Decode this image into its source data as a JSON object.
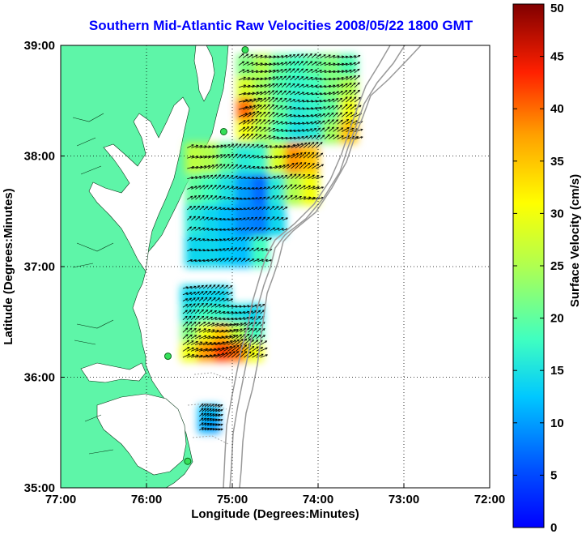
{
  "title": "Southern Mid-Atlantic Raw Velocities 2008/05/22 1800 GMT",
  "map": {
    "xlabel": "Longitude (Degrees:Minutes)",
    "ylabel": "Latitude (Degrees:Minutes)",
    "lon_range": [
      -77,
      -72
    ],
    "lat_range": [
      35,
      39
    ],
    "x_ticks": [
      {
        "value": -77,
        "label": "77:00"
      },
      {
        "value": -76,
        "label": "76:00"
      },
      {
        "value": -75,
        "label": "75:00"
      },
      {
        "value": -74,
        "label": "74:00"
      },
      {
        "value": -73,
        "label": "73:00"
      },
      {
        "value": -72,
        "label": "72:00"
      }
    ],
    "y_ticks": [
      {
        "value": 39,
        "label": "39:00"
      },
      {
        "value": 38,
        "label": "38:00"
      },
      {
        "value": 37,
        "label": "37:00"
      },
      {
        "value": 36,
        "label": "36:00"
      },
      {
        "value": 35,
        "label": "35:00"
      }
    ],
    "grid": "dotted",
    "land_color": "#5ef5a8",
    "station_color": "#35e05a",
    "stations": [
      {
        "lon": -74.85,
        "lat": 38.96
      },
      {
        "lon": -75.1,
        "lat": 38.22
      },
      {
        "lon": -75.75,
        "lat": 36.19
      },
      {
        "lon": -75.52,
        "lat": 35.24
      }
    ]
  },
  "colorbar": {
    "label": "Surface Velocity (cm/s)",
    "min": 0,
    "max": 50,
    "ticks": [
      {
        "value": 50,
        "label": "50"
      },
      {
        "value": 45,
        "label": "45"
      },
      {
        "value": 40,
        "label": "40"
      },
      {
        "value": 35,
        "label": "35"
      },
      {
        "value": 30,
        "label": "30"
      },
      {
        "value": 25,
        "label": "25"
      },
      {
        "value": 20,
        "label": "20"
      },
      {
        "value": 15,
        "label": "15"
      },
      {
        "value": 10,
        "label": "10"
      },
      {
        "value": 5,
        "label": "5"
      },
      {
        "value": 0,
        "label": "0"
      }
    ],
    "colormap": "jet"
  },
  "chart_data": {
    "type": "heatmap",
    "title": "Southern Mid-Atlantic Raw Velocities 2008/05/22 1800 GMT",
    "xlabel": "Longitude (Degrees:Minutes)",
    "ylabel": "Latitude (Degrees:Minutes)",
    "value_label": "Surface Velocity (cm/s)",
    "value_range": [
      0,
      50
    ],
    "regions": [
      {
        "lon": [
          -74.95,
          -73.55
        ],
        "lat": [
          38.12,
          38.92
        ],
        "values": [
          [
            22,
            25,
            20,
            18,
            20,
            22,
            19
          ],
          [
            28,
            24,
            19,
            17,
            18,
            22,
            25
          ],
          [
            40,
            27,
            20,
            16,
            17,
            20,
            30
          ],
          [
            30,
            25,
            18,
            15,
            16,
            24,
            35
          ]
        ]
      },
      {
        "lon": [
          -75.55,
          -74.0
        ],
        "lat": [
          37.0,
          38.12
        ],
        "values": [
          [
            26,
            25,
            20,
            16,
            17,
            28,
            38,
            35
          ],
          [
            20,
            18,
            15,
            10,
            7,
            16,
            25,
            30
          ],
          [
            16,
            14,
            12,
            9,
            8,
            14,
            0,
            0
          ],
          [
            14,
            14,
            13,
            12,
            18,
            0,
            0,
            0
          ]
        ]
      },
      {
        "lon": [
          -75.6,
          -74.65
        ],
        "lat": [
          36.15,
          36.83
        ],
        "values": [
          [
            14,
            14,
            14,
            0,
            0
          ],
          [
            16,
            18,
            17,
            15,
            14
          ],
          [
            22,
            30,
            35,
            26,
            18
          ],
          [
            30,
            38,
            42,
            40,
            30
          ]
        ]
      },
      {
        "lon": [
          -75.4,
          -75.15
        ],
        "lat": [
          35.5,
          35.75
        ],
        "values": [
          [
            12,
            12
          ],
          [
            11,
            10
          ]
        ]
      }
    ]
  }
}
